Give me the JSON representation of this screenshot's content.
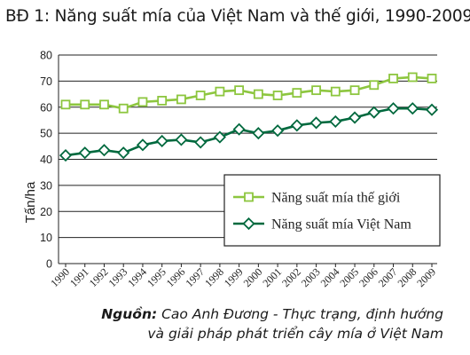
{
  "title": "BĐ 1: Năng suất mía của Việt Nam và thế giới, 1990-2009",
  "source": {
    "label": "Nguồn:",
    "line1": "Cao Anh Đương - Thực trạng, định hướng",
    "line2": "và giải pháp phát triển cây mía ở Việt Nam"
  },
  "chart_data": {
    "type": "line",
    "title": "BĐ 1: Năng suất mía của Việt Nam và thế giới, 1990-2009",
    "xlabel": "",
    "ylabel": "Tấn/ha",
    "ylim": [
      0,
      80
    ],
    "yticks": [
      0,
      10,
      20,
      30,
      40,
      50,
      60,
      70,
      80
    ],
    "grid": "horizontal",
    "legend_position": "center-right",
    "x": [
      "1990",
      "1991",
      "1992",
      "1993",
      "1994",
      "1995",
      "1996",
      "1997",
      "1998",
      "1999",
      "2000",
      "2001",
      "2002",
      "2003",
      "2004",
      "2005",
      "2006",
      "2007",
      "2008",
      "2009"
    ],
    "series": [
      {
        "name": "Năng suất mía thế giới",
        "color": "#8dc63f",
        "marker": "square",
        "values": [
          61,
          61,
          61,
          59.5,
          62,
          62.5,
          63,
          64.5,
          66,
          66.5,
          65,
          64.5,
          65.5,
          66.5,
          66,
          66.5,
          68.5,
          71,
          71.5,
          71
        ]
      },
      {
        "name": "Năng suất mía Việt Nam",
        "color": "#00693e",
        "marker": "diamond",
        "values": [
          41.5,
          42.5,
          43.5,
          42.5,
          45.5,
          47,
          47.5,
          46.5,
          48.5,
          51.5,
          50,
          51,
          53,
          54,
          54.5,
          56,
          58,
          59.5,
          59.5,
          59
        ]
      }
    ]
  }
}
